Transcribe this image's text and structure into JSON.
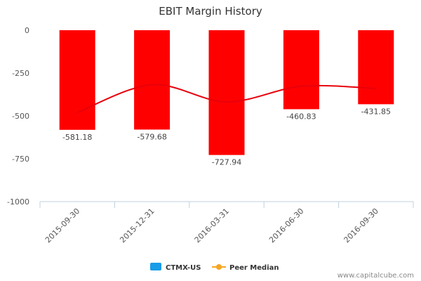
{
  "chart_data": {
    "type": "bar",
    "title": "EBIT Margin History",
    "categories": [
      "2015-09-30",
      "2015-12-31",
      "2016-03-31",
      "2016-06-30",
      "2016-09-30"
    ],
    "series": [
      {
        "name": "CTMX-US",
        "type": "bar",
        "values": [
          -581.18,
          -579.68,
          -727.94,
          -460.83,
          -431.85
        ],
        "value_labels": [
          "-581.18",
          "-579.68",
          "-727.94",
          "-460.83",
          "-431.85"
        ]
      },
      {
        "name": "Peer Median",
        "type": "line",
        "values": [
          -480,
          -318,
          -418,
          -327,
          -340
        ]
      }
    ],
    "ylim": [
      -1000,
      0
    ],
    "yticks": [
      0,
      -250,
      -500,
      -750,
      -1000
    ],
    "ytick_labels": [
      "0",
      "-250",
      "-500",
      "-750",
      "-1000"
    ],
    "xlabel": "",
    "ylabel": "",
    "grid": false,
    "legend_position": "bottom-center"
  },
  "colors": {
    "bar": "#ff0000",
    "peer_line": "#e8000b",
    "legend_ctmx": "#1a9ce8",
    "legend_peer": "#f5a623",
    "axis": "#c0d0e0"
  },
  "legend": {
    "ctmx_label": "CTMX-US",
    "peer_label": "Peer Median"
  },
  "footer": {
    "source": "www.capitalcube.com"
  }
}
